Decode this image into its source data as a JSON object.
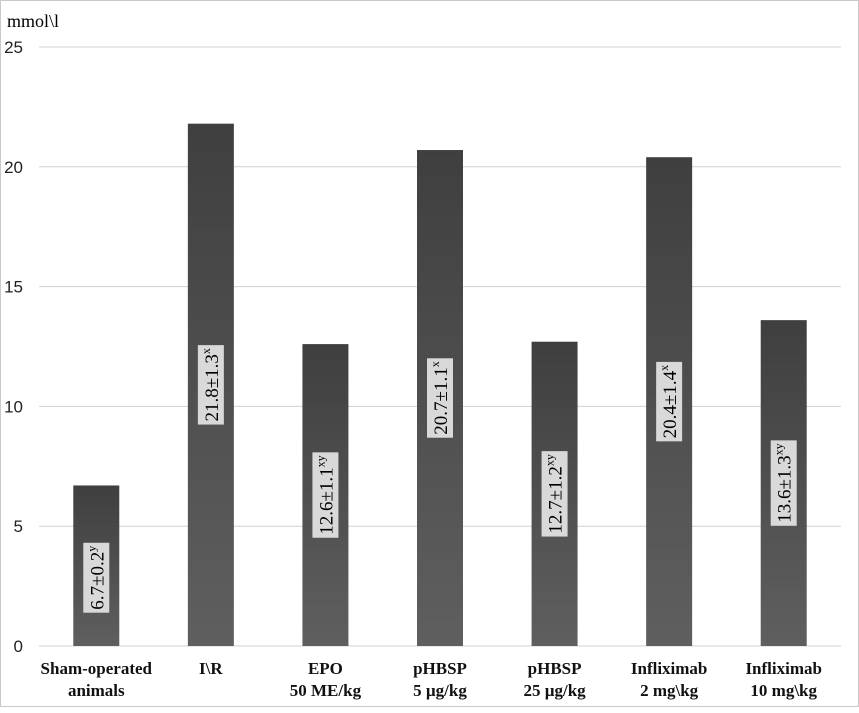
{
  "chart_data": {
    "type": "bar",
    "ylabel": "mmol\\l",
    "ylim": [
      0,
      25
    ],
    "yticks": [
      0,
      5,
      10,
      15,
      20,
      25
    ],
    "grid": true,
    "categories": [
      [
        "Sham-operated",
        "animals"
      ],
      [
        "I\\R"
      ],
      [
        "EPO",
        "50 ME/kg"
      ],
      [
        "pHBSP",
        "5 µg/kg"
      ],
      [
        "pHBSP",
        "25 µg/kg"
      ],
      [
        "Infliximab",
        "2 mg\\kg"
      ],
      [
        "Infliximab",
        "10 mg\\kg"
      ]
    ],
    "values": [
      6.7,
      21.8,
      12.6,
      20.7,
      12.7,
      20.4,
      13.6
    ],
    "data_labels": [
      {
        "text": "6.7±0.2",
        "sup": "y"
      },
      {
        "text": "21.8±1.3",
        "sup": "x"
      },
      {
        "text": "12.6±1.1",
        "sup": "xy"
      },
      {
        "text": "20.7±1.1",
        "sup": "x"
      },
      {
        "text": "12.7±1.2",
        "sup": "xy"
      },
      {
        "text": "20.4±1.4",
        "sup": "x"
      },
      {
        "text": "13.6±1.3",
        "sup": "xy"
      }
    ],
    "colors": {
      "bar_top": "#3f3f3f",
      "bar_bottom": "#5f5f5f",
      "grid": "#d0d0d0",
      "label_box": "#d9d9d9"
    }
  }
}
